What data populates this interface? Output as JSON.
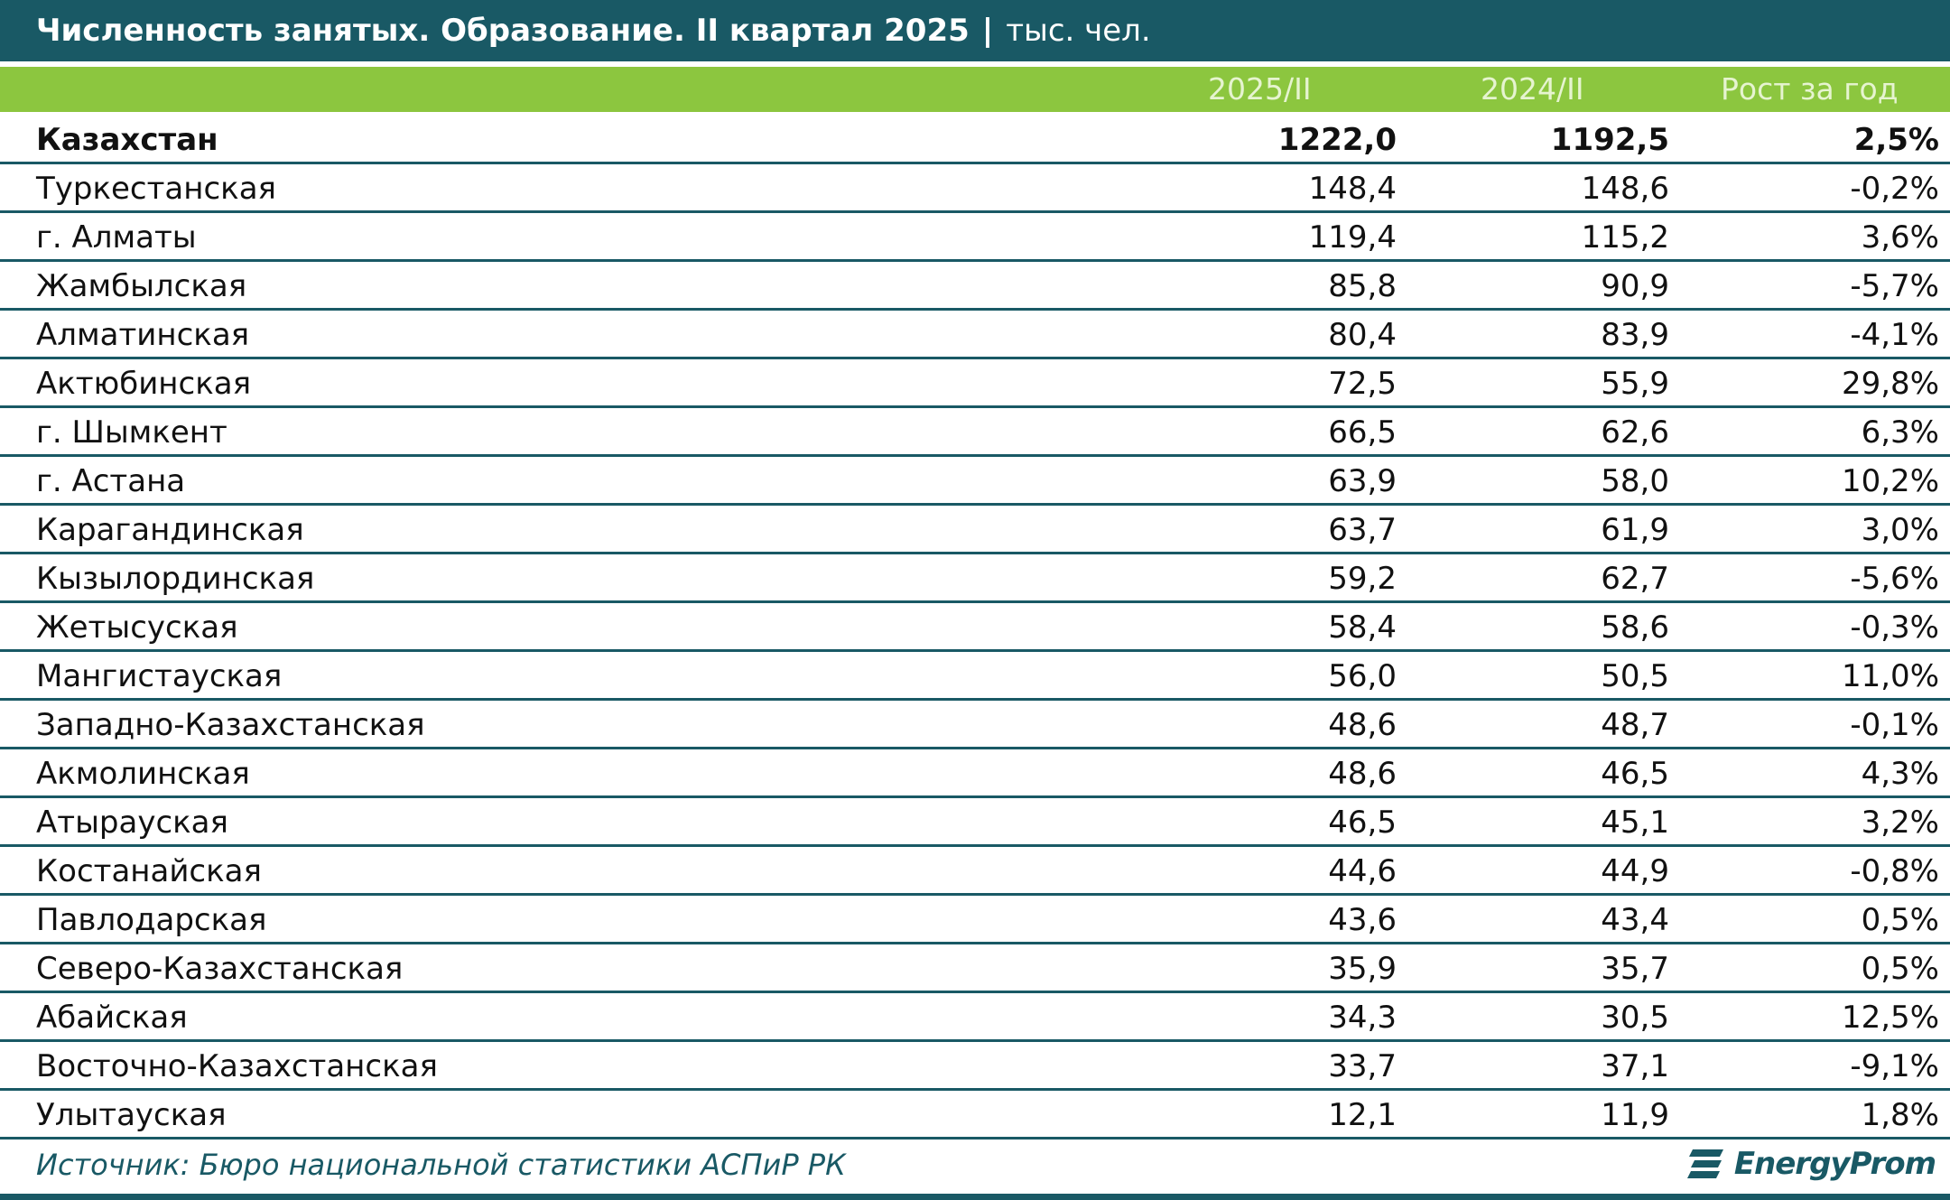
{
  "title": {
    "main": "Численность занятых. Образование. II квартал 2025",
    "separator": "|",
    "unit": "тыс. чел."
  },
  "colors": {
    "title_bar": "#195965",
    "header_band": "#8cc63f",
    "row_rule": "#195965"
  },
  "chart_data": {
    "type": "table",
    "columns": [
      "",
      "2025/II",
      "2024/II",
      "Рост за год"
    ],
    "rows": [
      {
        "region": "Казахстан",
        "v2025": "1222,0",
        "v2024": "1192,5",
        "growth": "2,5%"
      },
      {
        "region": "Туркестанская",
        "v2025": "148,4",
        "v2024": "148,6",
        "growth": "-0,2%"
      },
      {
        "region": "г. Алматы",
        "v2025": "119,4",
        "v2024": "115,2",
        "growth": "3,6%"
      },
      {
        "region": "Жамбылская",
        "v2025": "85,8",
        "v2024": "90,9",
        "growth": "-5,7%"
      },
      {
        "region": "Алматинская",
        "v2025": "80,4",
        "v2024": "83,9",
        "growth": "-4,1%"
      },
      {
        "region": "Актюбинская",
        "v2025": "72,5",
        "v2024": "55,9",
        "growth": "29,8%"
      },
      {
        "region": "г. Шымкент",
        "v2025": "66,5",
        "v2024": "62,6",
        "growth": "6,3%"
      },
      {
        "region": "г. Астана",
        "v2025": "63,9",
        "v2024": "58,0",
        "growth": "10,2%"
      },
      {
        "region": "Карагандинская",
        "v2025": "63,7",
        "v2024": "61,9",
        "growth": "3,0%"
      },
      {
        "region": "Кызылординская",
        "v2025": "59,2",
        "v2024": "62,7",
        "growth": "-5,6%"
      },
      {
        "region": "Жетысуская",
        "v2025": "58,4",
        "v2024": "58,6",
        "growth": "-0,3%"
      },
      {
        "region": "Мангистауская",
        "v2025": "56,0",
        "v2024": "50,5",
        "growth": "11,0%"
      },
      {
        "region": "Западно-Казахстанская",
        "v2025": "48,6",
        "v2024": "48,7",
        "growth": "-0,1%"
      },
      {
        "region": "Акмолинская",
        "v2025": "48,6",
        "v2024": "46,5",
        "growth": "4,3%"
      },
      {
        "region": "Атырауская",
        "v2025": "46,5",
        "v2024": "45,1",
        "growth": "3,2%"
      },
      {
        "region": "Костанайская",
        "v2025": "44,6",
        "v2024": "44,9",
        "growth": "-0,8%"
      },
      {
        "region": "Павлодарская",
        "v2025": "43,6",
        "v2024": "43,4",
        "growth": "0,5%"
      },
      {
        "region": "Северо-Казахстанская",
        "v2025": "35,9",
        "v2024": "35,7",
        "growth": "0,5%"
      },
      {
        "region": "Абайская",
        "v2025": "34,3",
        "v2024": "30,5",
        "growth": "12,5%"
      },
      {
        "region": "Восточно-Казахстанская",
        "v2025": "33,7",
        "v2024": "37,1",
        "growth": "-9,1%"
      },
      {
        "region": "Улытауская",
        "v2025": "12,1",
        "v2024": "11,9",
        "growth": "1,8%"
      }
    ]
  },
  "footer": {
    "source": "Источник: Бюро национальной статистики АСПиР РК",
    "logo_text": "EnergyProm",
    "logo_icon": "energyprom-logo-icon"
  }
}
